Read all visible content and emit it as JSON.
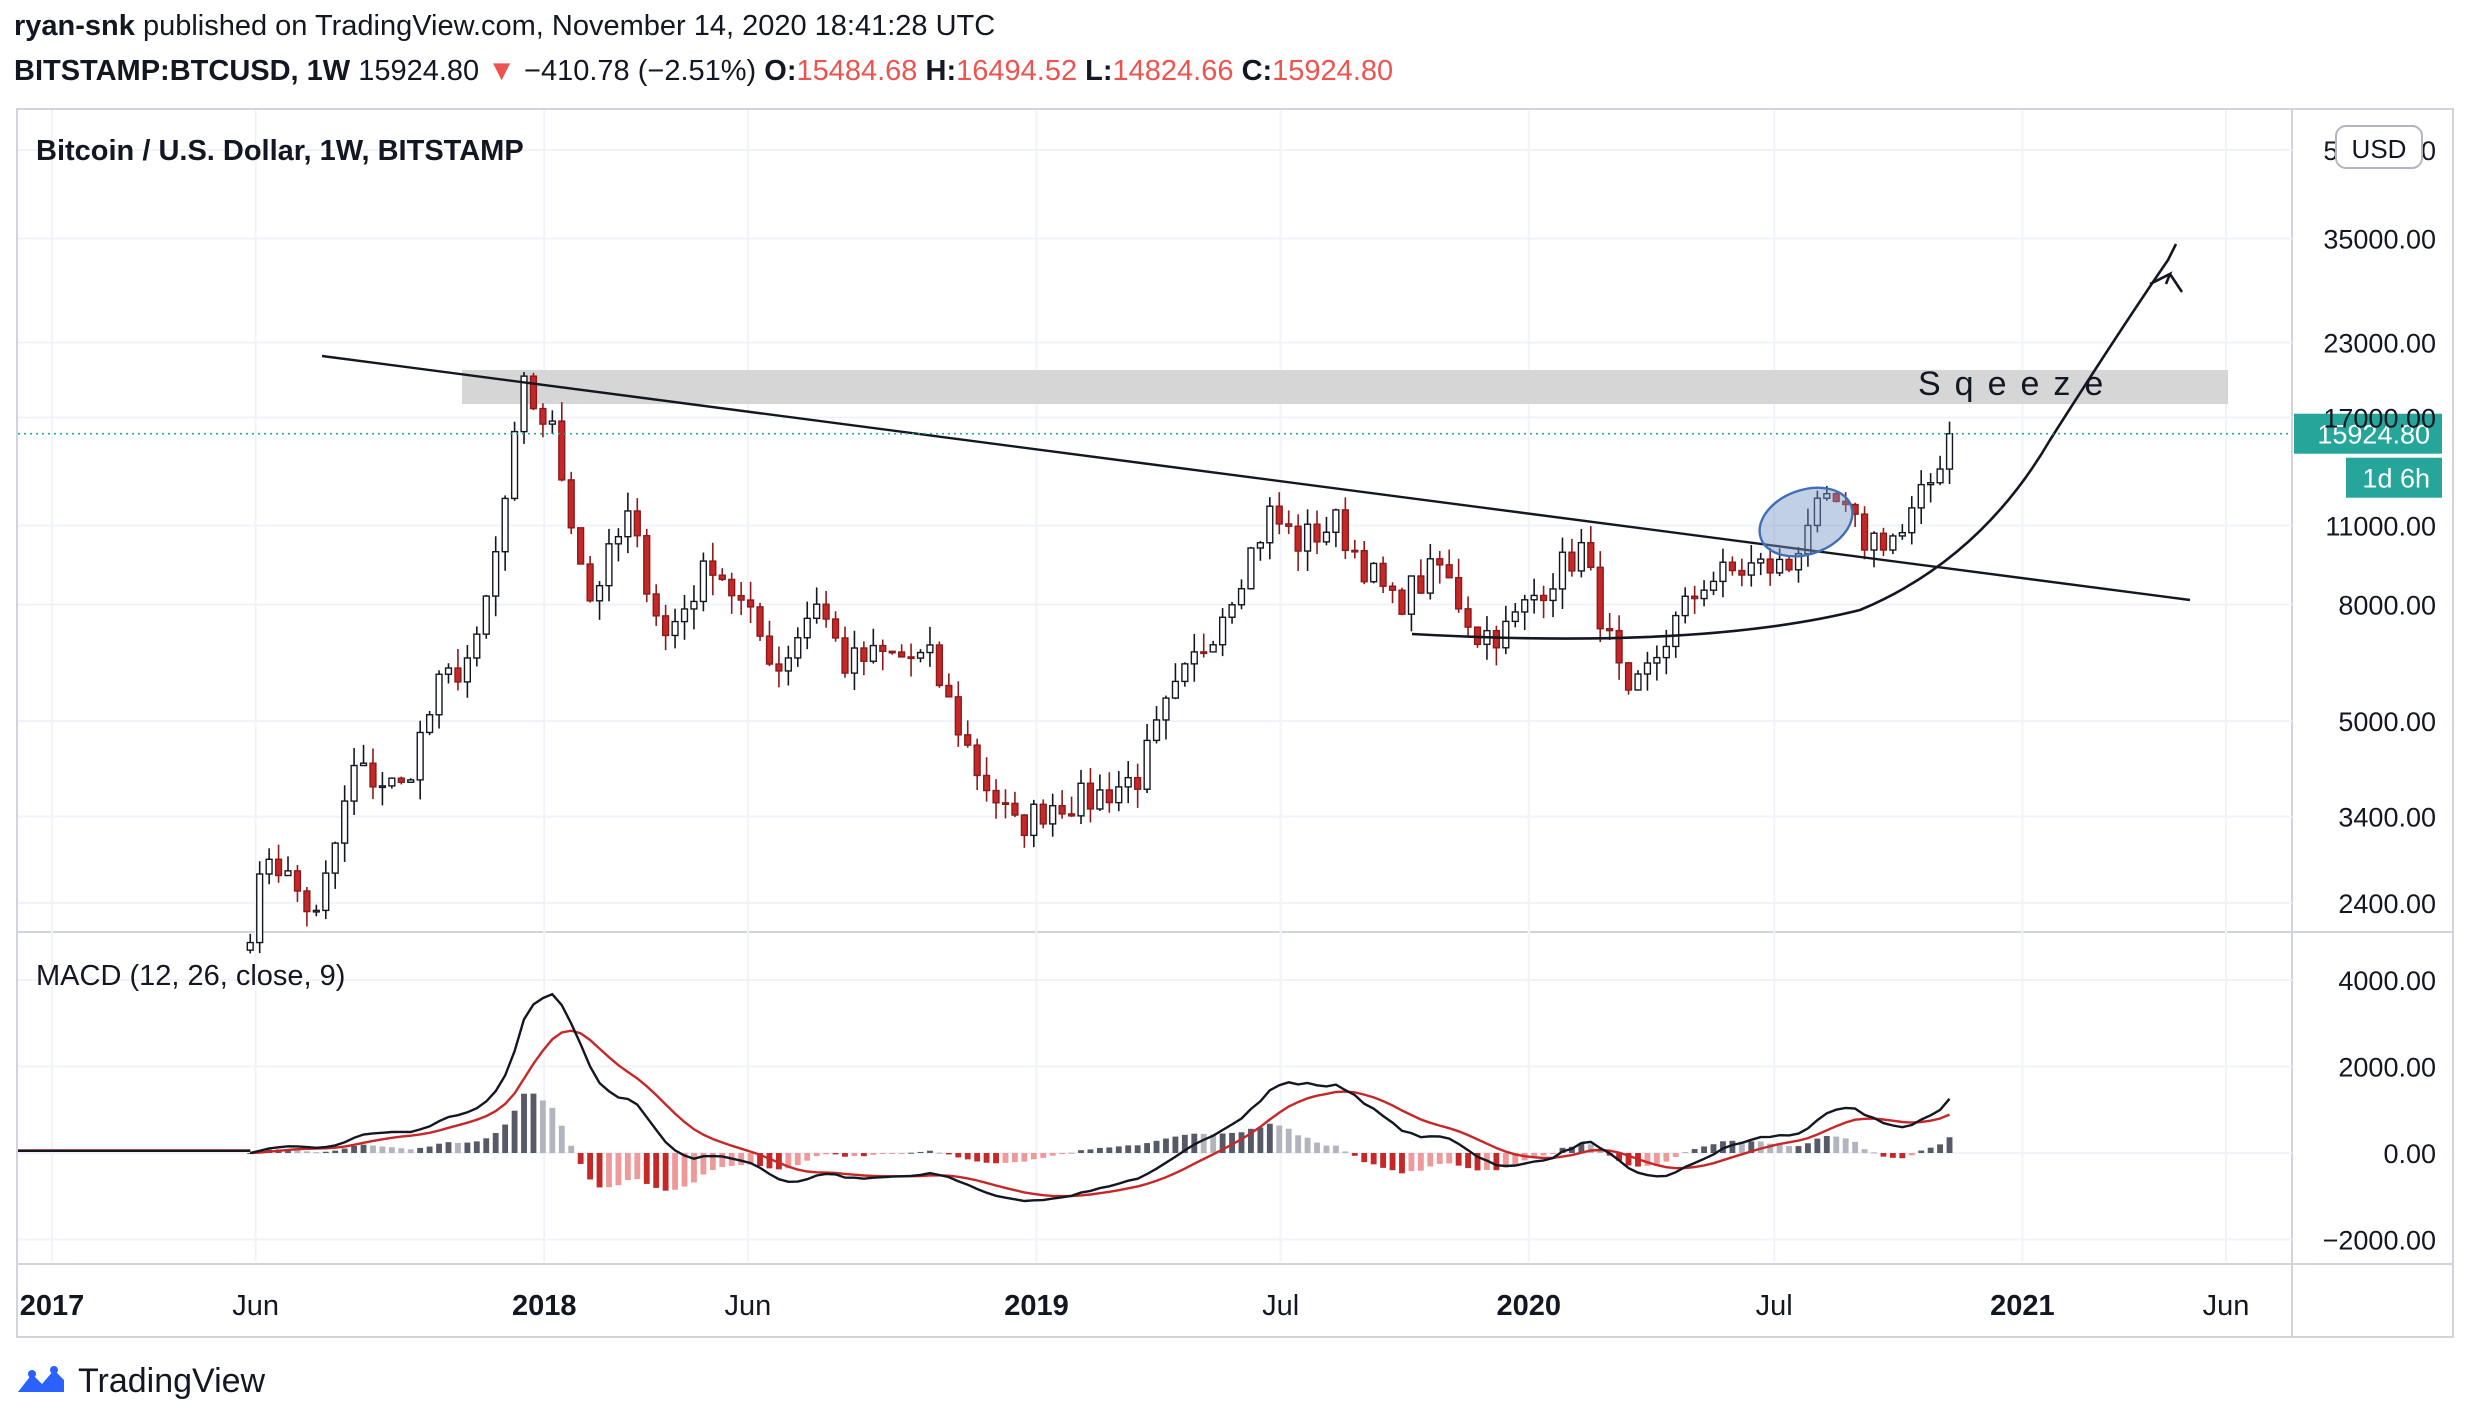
{
  "header": {
    "author": "ryan-snk",
    "published_text": "published on TradingView.com, November 14, 2020 18:41:28 UTC",
    "symbol": "BITSTAMP:BTCUSD, 1W",
    "last_price": "15924.80",
    "change": "−410.78 (−2.51%)",
    "change_arrow": "▼",
    "o_label": "O:",
    "o_value": "15484.68",
    "h_label": "H:",
    "h_value": "16494.52",
    "l_label": "L:",
    "l_value": "14824.66",
    "c_label": "C:",
    "c_value": "15924.80"
  },
  "colors": {
    "up": "#26a69a",
    "down": "#ef5350",
    "candle_up_fill": "#ffffff",
    "candle_body": "#131722",
    "accent": "#26a69a"
  },
  "chart_data": [
    {
      "type": "candlestick",
      "title": "Bitcoin / U.S. Dollar, 1W, BITSTAMP",
      "currency_label": "USD",
      "scale": "log",
      "ylim": [
        2000,
        52000
      ],
      "y_ticks": [
        "50000.00",
        "35000.00",
        "23000.00",
        "17000.00",
        "11000.00",
        "8000.00",
        "5000.00",
        "3400.00",
        "2400.00"
      ],
      "y_tick_values": [
        50000,
        35000,
        23000,
        17000,
        11000,
        8000,
        5000,
        3400,
        2400
      ],
      "x_ticks": [
        "2017",
        "Jun",
        "2018",
        "Jun",
        "2019",
        "Jul",
        "2020",
        "Jul",
        "2021",
        "Jun"
      ],
      "x_tick_dates": [
        "2017-01-01",
        "2017-06-01",
        "2018-01-01",
        "2018-06-01",
        "2019-01-01",
        "2019-07-01",
        "2020-01-01",
        "2020-07-01",
        "2021-01-01",
        "2021-06-01"
      ],
      "x_tick_bold": [
        true,
        false,
        true,
        false,
        true,
        false,
        true,
        false,
        true,
        false
      ],
      "last_price_label": "15924.80",
      "countdown_label": "1d 6h",
      "annotation_text": "Sqeeze",
      "price_anchors": [
        [
          "2017-05-28",
          2200
        ],
        [
          "2017-06-11",
          2950
        ],
        [
          "2017-07-16",
          2250
        ],
        [
          "2017-08-13",
          4100
        ],
        [
          "2017-09-17",
          3800
        ],
        [
          "2017-10-15",
          5700
        ],
        [
          "2017-11-12",
          6700
        ],
        [
          "2017-11-26",
          9700
        ],
        [
          "2017-12-17",
          19000
        ],
        [
          "2018-01-07",
          16000
        ],
        [
          "2018-02-04",
          8200
        ],
        [
          "2018-03-04",
          11300
        ],
        [
          "2018-04-01",
          7000
        ],
        [
          "2018-05-06",
          9600
        ],
        [
          "2018-06-24",
          6200
        ],
        [
          "2018-07-22",
          8200
        ],
        [
          "2018-08-12",
          6300
        ],
        [
          "2018-09-09",
          6500
        ],
        [
          "2018-10-14",
          6400
        ],
        [
          "2018-11-18",
          4100
        ],
        [
          "2018-12-16",
          3250
        ],
        [
          "2019-01-13",
          3600
        ],
        [
          "2019-02-10",
          3650
        ],
        [
          "2019-03-17",
          4000
        ],
        [
          "2019-04-07",
          5200
        ],
        [
          "2019-05-12",
          7300
        ],
        [
          "2019-06-23",
          11500
        ],
        [
          "2019-07-14",
          10300
        ],
        [
          "2019-08-11",
          11100
        ],
        [
          "2019-09-22",
          8000
        ],
        [
          "2019-10-27",
          9300
        ],
        [
          "2019-11-24",
          7100
        ],
        [
          "2019-12-15",
          7200
        ],
        [
          "2020-01-12",
          8700
        ],
        [
          "2020-02-09",
          10000
        ],
        [
          "2020-03-15",
          5300
        ],
        [
          "2020-04-12",
          7000
        ],
        [
          "2020-05-10",
          8800
        ],
        [
          "2020-06-14",
          9300
        ],
        [
          "2020-07-12",
          9300
        ],
        [
          "2020-07-26",
          11300
        ],
        [
          "2020-08-16",
          11900
        ],
        [
          "2020-09-06",
          10400
        ],
        [
          "2020-10-04",
          10600
        ],
        [
          "2020-10-25",
          13100
        ],
        [
          "2020-11-08",
          15924.8
        ]
      ]
    },
    {
      "type": "line",
      "title": "MACD (12, 26, close, 9)",
      "ylim": [
        -2300,
        4200
      ],
      "y_ticks": [
        "4000.00",
        "2000.00",
        "0.00",
        "−2000.00"
      ],
      "y_tick_values": [
        4000,
        2000,
        0,
        -2000
      ],
      "series": [
        {
          "name": "MACD",
          "color": "#131722"
        },
        {
          "name": "Signal",
          "color": "#c62828"
        }
      ],
      "histogram_colors": {
        "pos_strong": "#555a66",
        "pos_weak": "#b2b5be",
        "neg_strong": "#c62828",
        "neg_weak": "#ef9a9a"
      }
    }
  ],
  "footer": {
    "brand": "TradingView"
  }
}
